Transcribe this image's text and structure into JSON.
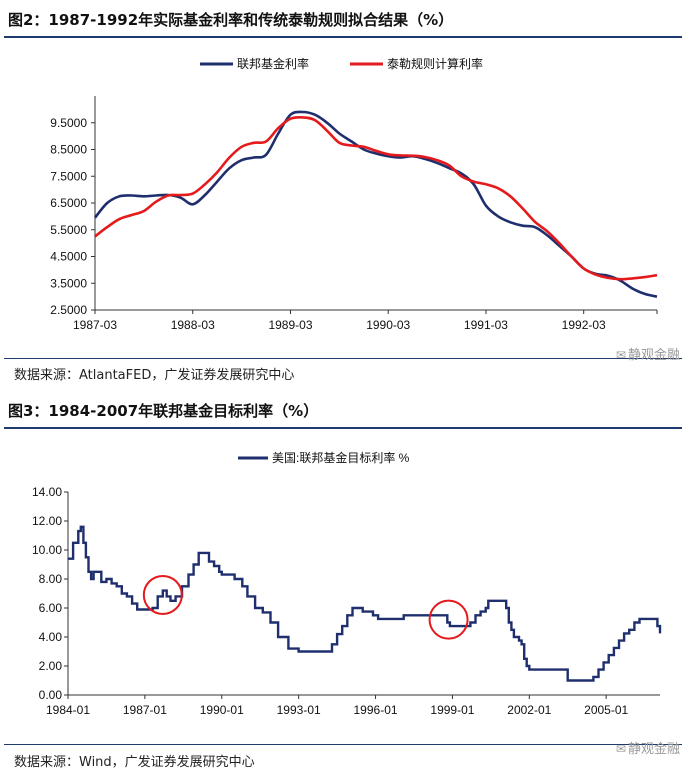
{
  "figure2": {
    "title": "图2：1987-1992年实际基金利率和传统泰勒规则拟合结果（%）",
    "source": "数据来源：AtlantaFED，广发证券发展研究中心",
    "watermark": "静观金融"
  },
  "figure3": {
    "title": "图3：1984-2007年联邦基金目标利率（%）",
    "source": "数据来源：Wind，广发证券发展研究中心",
    "watermark": "静观金融"
  },
  "chart_data": [
    {
      "type": "line",
      "title": "1987-1992年实际基金利率和传统泰勒规则拟合结果（%）",
      "xlabel": "",
      "ylabel": "",
      "xlim": [
        0,
        23
      ],
      "ylim": [
        2.5,
        10.5
      ],
      "yticks": [
        2.5,
        3.5,
        4.5,
        5.5,
        6.5,
        7.5,
        8.5,
        9.5
      ],
      "ytick_labels": [
        "2.5000",
        "3.5000",
        "4.5000",
        "5.5000",
        "6.5000",
        "7.5000",
        "8.5000",
        "9.5000"
      ],
      "xticks": [
        0,
        4,
        8,
        12,
        16,
        20
      ],
      "xtick_labels": [
        "1987-03",
        "1988-03",
        "1989-03",
        "1990-03",
        "1991-03",
        "1992-03"
      ],
      "legend_position": "top",
      "x": [
        0,
        0.5,
        1,
        1.5,
        2,
        2.5,
        3,
        3.5,
        4,
        4.5,
        5,
        5.5,
        6,
        6.5,
        7,
        7.5,
        8,
        8.5,
        9,
        9.5,
        10,
        10.5,
        11,
        11.5,
        12,
        12.5,
        13,
        13.5,
        14,
        14.5,
        15,
        15.5,
        16,
        16.5,
        17,
        17.5,
        18,
        18.5,
        19,
        19.5,
        20,
        20.5,
        21,
        21.5,
        22,
        22.5,
        23
      ],
      "series": [
        {
          "name": "联邦基金利率",
          "color": "#1f2f6e",
          "values": [
            5.95,
            6.5,
            6.75,
            6.78,
            6.75,
            6.78,
            6.8,
            6.7,
            6.45,
            6.8,
            7.3,
            7.8,
            8.1,
            8.2,
            8.3,
            9.1,
            9.8,
            9.9,
            9.8,
            9.5,
            9.1,
            8.8,
            8.5,
            8.35,
            8.25,
            8.2,
            8.25,
            8.15,
            8.0,
            7.8,
            7.6,
            7.2,
            6.4,
            6.0,
            5.78,
            5.65,
            5.6,
            5.3,
            4.9,
            4.5,
            4.05,
            3.85,
            3.78,
            3.6,
            3.3,
            3.1,
            3.0
          ]
        },
        {
          "name": "泰勒规则计算利率",
          "color": "#e41a1c",
          "values": [
            5.25,
            5.6,
            5.9,
            6.05,
            6.2,
            6.55,
            6.78,
            6.8,
            6.85,
            7.2,
            7.65,
            8.2,
            8.6,
            8.75,
            8.8,
            9.3,
            9.65,
            9.7,
            9.6,
            9.2,
            8.75,
            8.65,
            8.6,
            8.45,
            8.32,
            8.28,
            8.27,
            8.22,
            8.1,
            7.9,
            7.5,
            7.3,
            7.2,
            7.05,
            6.75,
            6.3,
            5.8,
            5.45,
            5.0,
            4.5,
            4.05,
            3.82,
            3.7,
            3.65,
            3.68,
            3.73,
            3.8
          ]
        }
      ]
    },
    {
      "type": "line",
      "title": "1984-2007年联邦基金目标利率（%）",
      "xlabel": "",
      "ylabel": "",
      "xlim": [
        1984.0,
        2007.1
      ],
      "ylim": [
        0,
        14
      ],
      "yticks": [
        0,
        2,
        4,
        6,
        8,
        10,
        12,
        14
      ],
      "ytick_labels": [
        "0.00",
        "2.00",
        "4.00",
        "6.00",
        "8.00",
        "10.00",
        "12.00",
        "14.00"
      ],
      "xticks": [
        1984,
        1987,
        1990,
        1993,
        1996,
        1999,
        2002,
        2005
      ],
      "xtick_labels": [
        "1984-01",
        "1987-01",
        "1990-01",
        "1993-01",
        "1996-01",
        "1999-01",
        "2002-01",
        "2005-01"
      ],
      "legend_position": "top",
      "annotations": [
        {
          "shape": "circle",
          "x": 1987.7,
          "y": 6.9,
          "color": "#e41a1c"
        },
        {
          "shape": "circle",
          "x": 1998.85,
          "y": 5.2,
          "color": "#e41a1c"
        }
      ],
      "series": [
        {
          "name": "美国:联邦基金目标利率 %",
          "color": "#1f2f6e",
          "x": [
            1984.0,
            1984.2,
            1984.4,
            1984.5,
            1984.6,
            1984.7,
            1984.8,
            1984.9,
            1985.0,
            1985.3,
            1985.5,
            1985.7,
            1985.9,
            1986.1,
            1986.3,
            1986.5,
            1986.7,
            1986.9,
            1987.3,
            1987.5,
            1987.7,
            1987.85,
            1988.0,
            1988.2,
            1988.45,
            1988.7,
            1988.9,
            1989.1,
            1989.3,
            1989.5,
            1989.7,
            1989.9,
            1990.0,
            1990.5,
            1990.8,
            1991.0,
            1991.3,
            1991.6,
            1991.9,
            1992.2,
            1992.6,
            1993.0,
            1994.0,
            1994.3,
            1994.5,
            1994.7,
            1994.9,
            1995.1,
            1995.5,
            1995.9,
            1996.1,
            1996.5,
            1997.1,
            1998.7,
            1998.8,
            1998.9,
            1999.5,
            1999.7,
            1999.9,
            2000.1,
            2000.3,
            2000.4,
            2001.0,
            2001.1,
            2001.2,
            2001.3,
            2001.4,
            2001.6,
            2001.7,
            2001.8,
            2001.9,
            2002.0,
            2002.9,
            2003.5,
            2004.5,
            2004.7,
            2004.9,
            2005.1,
            2005.3,
            2005.5,
            2005.7,
            2005.9,
            2006.1,
            2006.3,
            2006.5,
            2006.9,
            2007.0,
            2007.1
          ],
          "values": [
            9.4,
            10.5,
            11.3,
            11.6,
            10.5,
            9.5,
            8.5,
            8.0,
            8.5,
            7.8,
            8.0,
            7.7,
            7.5,
            7.0,
            6.8,
            6.3,
            5.9,
            5.9,
            6.0,
            6.8,
            7.2,
            6.8,
            6.5,
            6.8,
            7.5,
            8.3,
            9.0,
            9.8,
            9.8,
            9.2,
            8.9,
            8.5,
            8.3,
            8.0,
            7.5,
            6.8,
            6.0,
            5.7,
            5.0,
            4.0,
            3.2,
            3.0,
            3.0,
            3.5,
            4.2,
            4.75,
            5.5,
            6.0,
            5.75,
            5.5,
            5.25,
            5.25,
            5.5,
            5.5,
            5.0,
            4.75,
            4.75,
            5.0,
            5.5,
            5.75,
            6.0,
            6.5,
            6.5,
            6.0,
            5.0,
            4.5,
            4.0,
            3.75,
            3.5,
            2.5,
            2.0,
            1.75,
            1.75,
            1.0,
            1.25,
            1.75,
            2.25,
            2.75,
            3.25,
            3.75,
            4.25,
            4.5,
            5.0,
            5.25,
            5.25,
            5.25,
            4.75,
            4.25
          ]
        }
      ]
    }
  ]
}
